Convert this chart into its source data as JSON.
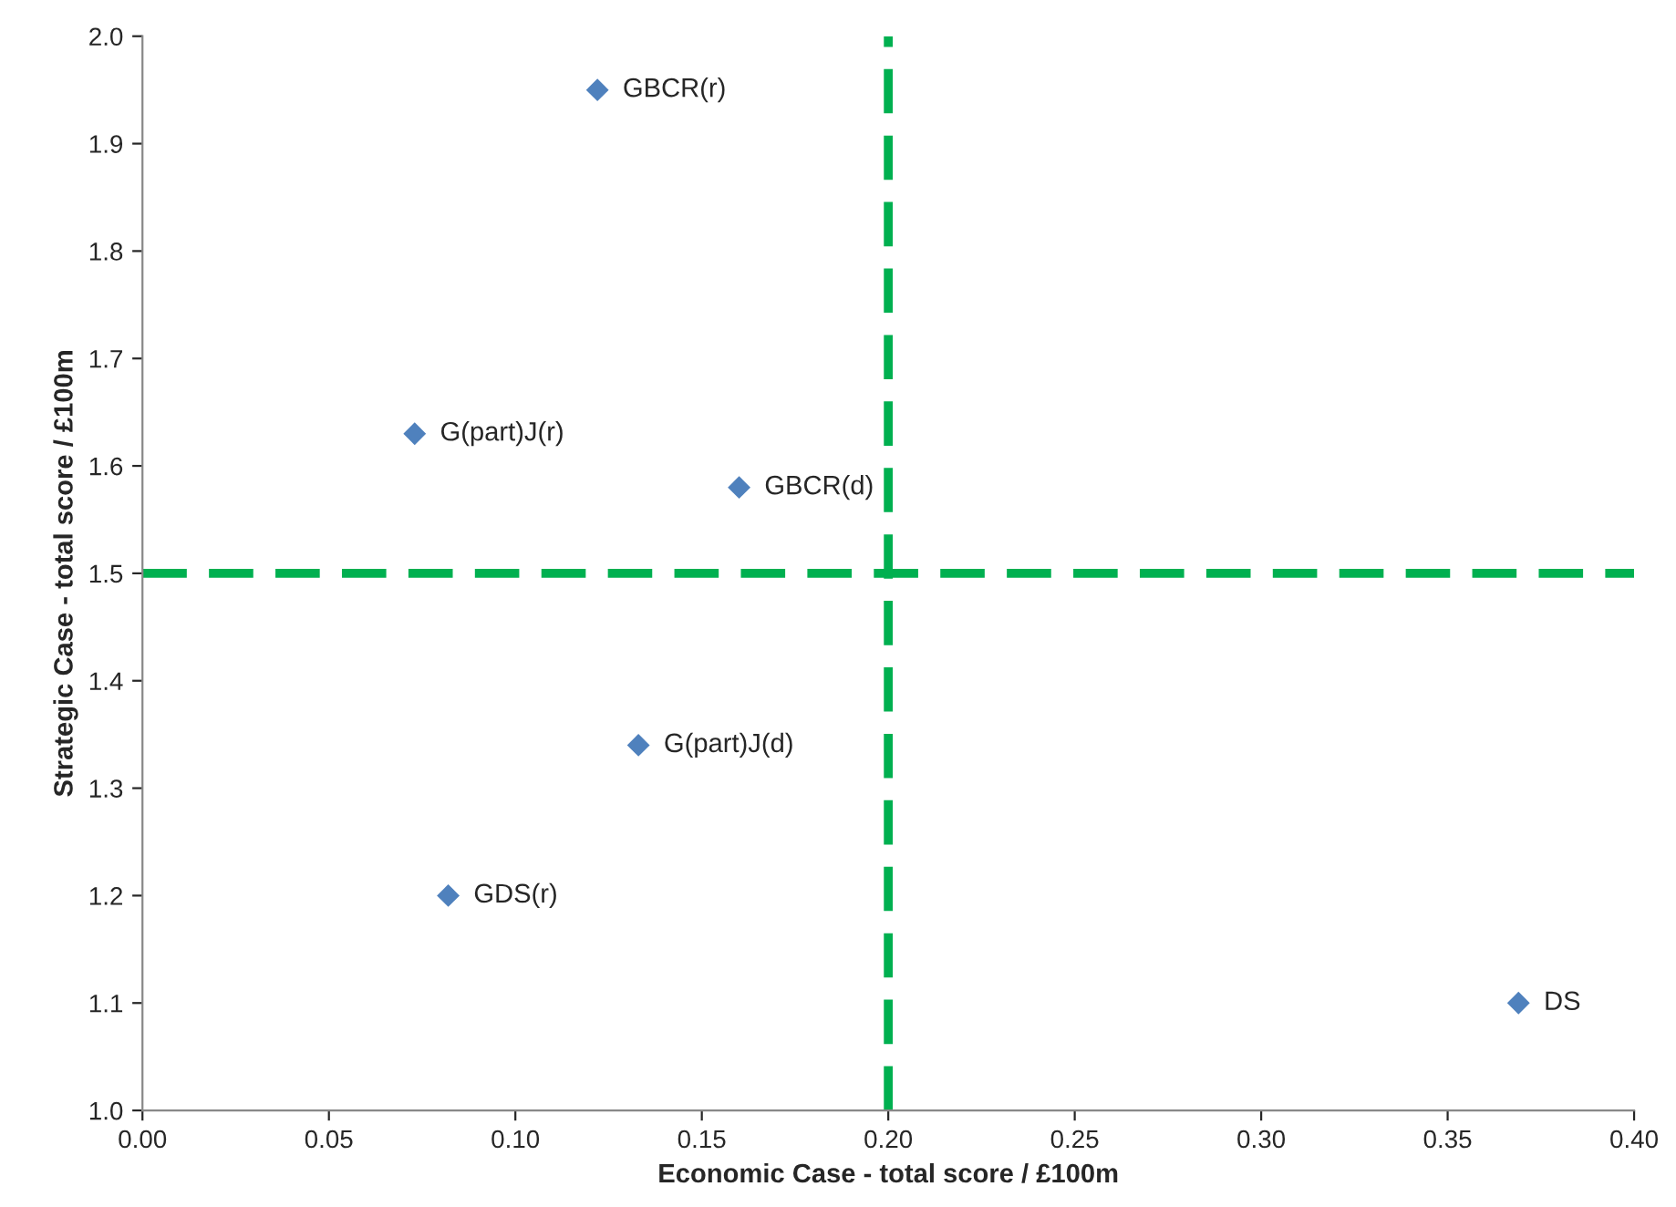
{
  "chart_data": {
    "type": "scatter",
    "xlabel": "Economic Case - total score / £100m",
    "ylabel": "Strategic Case - total score / £100m",
    "x": [
      0.122,
      0.073,
      0.16,
      0.133,
      0.082,
      0.369
    ],
    "series": [
      {
        "color": "#4f81bd",
        "values": [
          1.95,
          1.63,
          1.58,
          1.34,
          1.2,
          1.1
        ]
      }
    ],
    "marker": "diamond",
    "annotations": [
      {
        "text": "GBCR(r)",
        "x": 0.122,
        "y": 1.95
      },
      {
        "text": "G(part)J(r)",
        "x": 0.073,
        "y": 1.63
      },
      {
        "text": "GBCR(d)",
        "x": 0.16,
        "y": 1.58
      },
      {
        "text": "G(part)J(d)",
        "x": 0.133,
        "y": 1.34
      },
      {
        "text": "GDS(r)",
        "x": 0.082,
        "y": 1.2
      },
      {
        "text": "DS",
        "x": 0.369,
        "y": 1.1
      }
    ],
    "ref_lines": [
      {
        "axis": "x",
        "value": 0.2,
        "color": "#00b050",
        "line_style": "dashed"
      },
      {
        "axis": "y",
        "value": 1.5,
        "color": "#00b050",
        "line_style": "dashed"
      }
    ],
    "xlim": [
      0,
      0.4
    ],
    "xticks": [
      {
        "value": 0,
        "label": "0.00"
      },
      {
        "value": 0.05,
        "label": "0.05"
      },
      {
        "value": 0.1,
        "label": "0.10"
      },
      {
        "value": 0.15,
        "label": "0.15"
      },
      {
        "value": 0.2,
        "label": "0.20"
      },
      {
        "value": 0.25,
        "label": "0.25"
      },
      {
        "value": 0.3,
        "label": "0.30"
      },
      {
        "value": 0.35,
        "label": "0.35"
      },
      {
        "value": 0.4,
        "label": "0.40"
      }
    ],
    "ylim": [
      1.0,
      2.0
    ],
    "yticks": [
      {
        "value": 1.0,
        "label": "1.0"
      },
      {
        "value": 1.1,
        "label": "1.1"
      },
      {
        "value": 1.2,
        "label": "1.2"
      },
      {
        "value": 1.3,
        "label": "1.3"
      },
      {
        "value": 1.4,
        "label": "1.4"
      },
      {
        "value": 1.5,
        "label": "1.5"
      },
      {
        "value": 1.6,
        "label": "1.6"
      },
      {
        "value": 1.7,
        "label": "1.7"
      },
      {
        "value": 1.8,
        "label": "1.8"
      },
      {
        "value": 1.9,
        "label": "1.9"
      },
      {
        "value": 2.0,
        "label": "2.0"
      }
    ],
    "grid": false
  }
}
